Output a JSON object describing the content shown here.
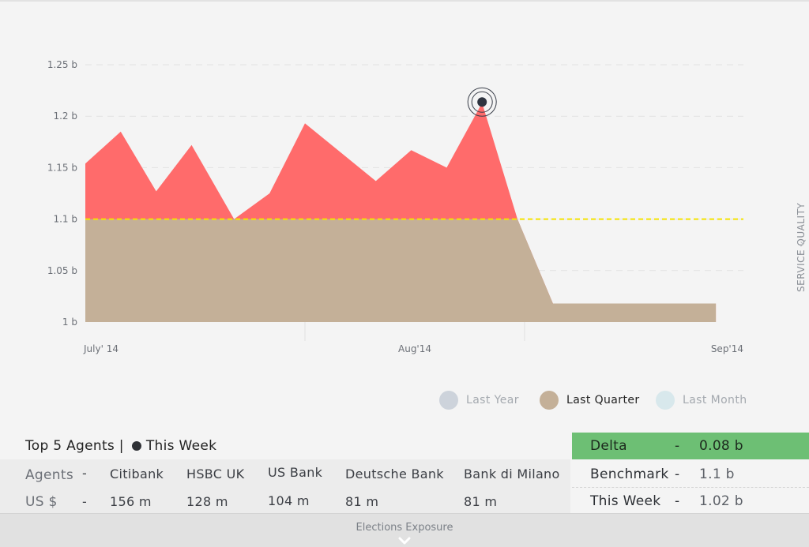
{
  "chart_data": {
    "type": "area",
    "x_start": "2014-07-01",
    "x_end": "2014-09-01",
    "x_tick_labels": [
      "July' 14",
      "Aug'14",
      "Sep'14"
    ],
    "y_tick_labels": [
      "1.25 b",
      "1.2 b",
      "1.15 b",
      "1.1 b",
      "1.05 b",
      "1 b"
    ],
    "ylim": [
      1.0,
      1.25
    ],
    "threshold": 1.1,
    "grid": true,
    "series": [
      {
        "x": [
          "2014-07-01",
          "2014-07-06",
          "2014-07-11",
          "2014-07-16",
          "2014-07-22",
          "2014-07-27",
          "2014-08-01",
          "2014-08-06",
          "2014-08-11",
          "2014-08-16",
          "2014-08-21",
          "2014-08-26",
          "2014-08-31",
          "2014-09-05",
          "2014-09-10",
          "2014-09-15",
          "2014-09-20",
          "2014-09-25",
          "2014-09-28"
        ],
        "values": [
          1.154,
          1.185,
          1.127,
          1.172,
          1.1,
          1.125,
          1.193,
          1.165,
          1.137,
          1.167,
          1.15,
          1.213,
          1.1,
          1.018,
          1.018,
          1.018,
          1.018,
          1.018,
          1.018
        ]
      }
    ],
    "highlight_point": {
      "x": "2014-08-26",
      "value": 1.213
    },
    "colors": {
      "above": "#ff6b6b",
      "below": "#c4b098",
      "threshold_line": "#f5e300",
      "marker": "#2f3440"
    }
  },
  "side_tab": {
    "label": "SERVICE QUALITY",
    "icon": "chevron-right-icon"
  },
  "legend": [
    {
      "label": "Last Year",
      "color": "#cdd3db",
      "active": false
    },
    {
      "label": "Last Quarter",
      "color": "#c4b098",
      "active": true
    },
    {
      "label": "Last Month",
      "color": "#d8e8ec",
      "active": false
    }
  ],
  "agents_panel": {
    "title": "Top 5 Agents |",
    "period": "This Week",
    "row_label_agents": "Agents",
    "row_label_value": "US $",
    "dash": "-",
    "agents": [
      "Citibank",
      "HSBC UK",
      "US Bank",
      "Deutsche Bank",
      "Bank di Milano"
    ],
    "values": [
      "156 m",
      "128 m",
      "104 m",
      "81 m",
      "81 m"
    ]
  },
  "stats": {
    "delta": {
      "label": "Delta",
      "dash": "-",
      "value": "0.08 b"
    },
    "benchmark": {
      "label": "Benchmark",
      "dash": "-",
      "value": "1.1 b"
    },
    "this_week": {
      "label": "This Week",
      "dash": "-",
      "value": "1.02 b"
    }
  },
  "footer": {
    "label": "Elections  Exposure",
    "icon": "chevron-down-icon"
  }
}
